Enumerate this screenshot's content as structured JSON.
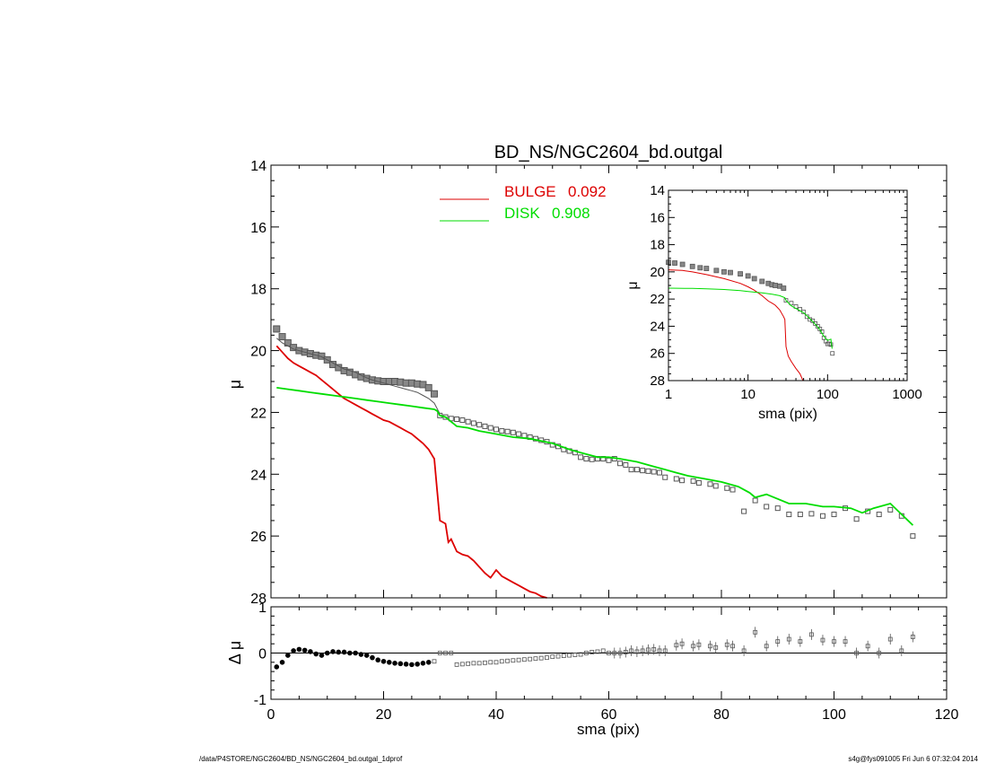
{
  "chart_data": [
    {
      "type": "line",
      "title": "BD_NS/NGC2604_bd.outgal",
      "xlabel": "",
      "ylabel": "μ",
      "xlim": [
        0,
        120
      ],
      "ylim": [
        28,
        14
      ],
      "y_inverted": true,
      "yticks": [
        "14",
        "16",
        "18",
        "20",
        "22",
        "24",
        "26",
        "28"
      ],
      "legend": {
        "placement": "top-center",
        "entries": [
          {
            "label": "BULGE",
            "value": "0.092",
            "color": "#dd0000"
          },
          {
            "label": "DISK",
            "value": "0.908",
            "color": "#00dd00"
          }
        ]
      },
      "series": [
        {
          "style": "squares",
          "color": "#555555",
          "x": [
            1,
            2,
            3,
            4,
            5,
            6,
            7,
            8,
            9,
            10,
            11,
            12,
            13,
            14,
            15,
            16,
            17,
            18,
            19,
            20,
            21,
            22,
            23,
            24,
            25,
            26,
            27,
            28,
            29,
            30,
            31,
            32,
            33,
            34,
            35,
            36,
            37,
            38,
            39,
            40,
            41,
            42,
            43,
            44,
            45,
            46,
            47,
            48,
            49,
            50,
            51,
            52,
            53,
            54,
            55,
            56,
            57,
            58,
            59,
            60,
            61,
            62,
            63,
            64,
            65,
            66,
            67,
            68,
            69,
            70,
            72,
            73,
            75,
            76,
            78,
            79,
            81,
            82,
            84,
            86,
            88,
            90,
            92,
            94,
            96,
            98,
            100,
            102,
            104,
            106,
            108,
            110,
            112,
            114
          ],
          "y": [
            19.3,
            19.55,
            19.75,
            19.9,
            20.0,
            20.05,
            20.1,
            20.15,
            20.18,
            20.3,
            20.45,
            20.55,
            20.65,
            20.7,
            20.78,
            20.85,
            20.9,
            20.95,
            20.98,
            21.0,
            21.0,
            21.0,
            21.02,
            21.05,
            21.05,
            21.08,
            21.1,
            21.2,
            21.4,
            22.1,
            22.15,
            22.2,
            22.22,
            22.25,
            22.3,
            22.35,
            22.4,
            22.45,
            22.5,
            22.55,
            22.6,
            22.62,
            22.65,
            22.7,
            22.75,
            22.8,
            22.85,
            22.9,
            22.95,
            23.05,
            23.1,
            23.2,
            23.25,
            23.3,
            23.45,
            23.5,
            23.52,
            23.5,
            23.5,
            23.55,
            23.5,
            23.65,
            23.7,
            23.85,
            23.85,
            23.88,
            23.9,
            23.92,
            23.95,
            24.1,
            24.15,
            24.2,
            24.22,
            24.28,
            24.32,
            24.38,
            24.45,
            24.5,
            25.2,
            24.85,
            25.05,
            25.1,
            25.3,
            25.3,
            25.28,
            25.35,
            25.3,
            25.1,
            25.45,
            25.2,
            25.3,
            25.15,
            25.35,
            26.0
          ]
        },
        {
          "style": "thin-line",
          "color": "#555555",
          "x": [
            1,
            2,
            3,
            4,
            5,
            6,
            7,
            8,
            9,
            10,
            11,
            12,
            13,
            14,
            15,
            16,
            17,
            18,
            19,
            20,
            21,
            22,
            23,
            24,
            25,
            26,
            27,
            28,
            29,
            30
          ],
          "y": [
            19.6,
            19.75,
            19.85,
            19.95,
            20.0,
            20.05,
            20.1,
            20.15,
            20.2,
            20.3,
            20.4,
            20.5,
            20.6,
            20.65,
            20.7,
            20.8,
            20.88,
            20.95,
            21.0,
            21.05,
            21.1,
            21.15,
            21.2,
            21.25,
            21.3,
            21.35,
            21.45,
            21.55,
            21.7,
            22.05
          ]
        },
        {
          "style": "line",
          "color": "#dd0000",
          "name": "BULGE",
          "x": [
            1,
            2,
            3,
            4,
            5,
            6,
            7,
            8,
            9,
            10,
            11,
            12,
            13,
            14,
            15,
            16,
            17,
            18,
            19,
            20,
            21,
            22,
            23,
            24,
            25,
            26,
            27,
            28,
            29,
            29.5,
            30,
            31,
            31.5,
            32,
            33,
            34,
            35,
            36,
            37,
            38,
            39,
            40,
            41,
            42,
            43,
            44,
            45,
            46,
            47,
            48,
            49
          ],
          "y": [
            19.85,
            20.05,
            20.25,
            20.4,
            20.5,
            20.6,
            20.7,
            20.8,
            20.95,
            21.1,
            21.25,
            21.4,
            21.55,
            21.65,
            21.75,
            21.85,
            21.95,
            22.05,
            22.15,
            22.25,
            22.3,
            22.4,
            22.5,
            22.6,
            22.7,
            22.85,
            23.0,
            23.2,
            23.5,
            24.5,
            25.5,
            25.6,
            26.2,
            26.1,
            26.5,
            26.6,
            26.65,
            26.8,
            27.0,
            27.2,
            27.35,
            27.1,
            27.3,
            27.4,
            27.5,
            27.6,
            27.7,
            27.8,
            27.85,
            27.95,
            28.0
          ]
        },
        {
          "style": "line",
          "color": "#00dd00",
          "name": "DISK",
          "x": [
            1,
            3,
            5,
            7,
            9,
            11,
            13,
            15,
            17,
            19,
            21,
            23,
            25,
            27,
            29,
            29.5,
            30,
            31,
            32,
            33,
            35,
            37,
            40,
            43,
            46,
            50,
            53,
            55,
            58,
            60,
            62,
            65,
            68,
            70,
            72,
            74,
            77,
            80,
            83,
            85,
            86,
            88,
            90,
            92,
            95,
            98,
            100,
            103,
            105,
            107,
            110,
            112,
            114
          ],
          "y": [
            21.2,
            21.25,
            21.3,
            21.35,
            21.4,
            21.45,
            21.5,
            21.55,
            21.6,
            21.65,
            21.7,
            21.75,
            21.8,
            21.85,
            21.9,
            21.95,
            22.1,
            22.15,
            22.3,
            22.45,
            22.5,
            22.6,
            22.7,
            22.8,
            22.85,
            23.0,
            23.2,
            23.3,
            23.45,
            23.45,
            23.5,
            23.6,
            23.75,
            23.85,
            23.95,
            24.05,
            24.15,
            24.25,
            24.4,
            24.6,
            24.75,
            24.65,
            24.8,
            24.95,
            24.95,
            25.05,
            25.05,
            25.1,
            25.25,
            25.1,
            24.95,
            25.3,
            25.65
          ]
        }
      ]
    },
    {
      "type": "line",
      "xlabel": "sma (pix)",
      "ylabel": "μ",
      "xscale": "log",
      "xlim": [
        1,
        1000
      ],
      "ylim": [
        28,
        14
      ],
      "y_inverted": true,
      "xticks": [
        "1",
        "10",
        "100",
        "1000"
      ],
      "yticks": [
        "14",
        "16",
        "18",
        "20",
        "22",
        "24",
        "26",
        "28"
      ],
      "placement": "inset top-right",
      "series": [
        {
          "style": "squares",
          "color": "#555555",
          "x": [
            1,
            1.2,
            1.5,
            2,
            2.5,
            3,
            4,
            5,
            6,
            8,
            10,
            12,
            15,
            18,
            20,
            22,
            25,
            28,
            30,
            35,
            40,
            45,
            50,
            55,
            60,
            65,
            70,
            75,
            80,
            85,
            90,
            95,
            100,
            105,
            110,
            115
          ],
          "y": [
            19.3,
            19.35,
            19.45,
            19.6,
            19.7,
            19.75,
            19.9,
            20.0,
            20.05,
            20.15,
            20.3,
            20.5,
            20.7,
            20.85,
            20.95,
            21.0,
            21.05,
            21.2,
            22.1,
            22.3,
            22.55,
            22.75,
            22.95,
            23.3,
            23.5,
            23.6,
            23.8,
            24.0,
            24.2,
            24.4,
            24.85,
            25.1,
            25.3,
            25.3,
            25.35,
            26.0
          ]
        },
        {
          "style": "line",
          "color": "#dd0000",
          "x": [
            1,
            1.5,
            2,
            3,
            5,
            8,
            10,
            12,
            15,
            18,
            20,
            22,
            25,
            28,
            29,
            30,
            32,
            35,
            40,
            45,
            49
          ],
          "y": [
            19.85,
            19.9,
            20.0,
            20.2,
            20.5,
            20.85,
            21.1,
            21.35,
            21.75,
            22.15,
            22.3,
            22.45,
            22.8,
            23.3,
            23.5,
            25.5,
            26.2,
            26.6,
            27.1,
            27.5,
            28.0
          ]
        },
        {
          "style": "line",
          "color": "#00dd00",
          "x": [
            1,
            2,
            3,
            5,
            8,
            10,
            15,
            20,
            25,
            29,
            30,
            35,
            40,
            50,
            60,
            70,
            80,
            90,
            100,
            110,
            114
          ],
          "y": [
            21.2,
            21.22,
            21.25,
            21.3,
            21.38,
            21.45,
            21.55,
            21.65,
            21.75,
            21.9,
            22.1,
            22.5,
            22.7,
            23.0,
            23.45,
            23.85,
            24.25,
            24.75,
            25.05,
            24.95,
            25.65
          ]
        }
      ]
    },
    {
      "type": "scatter",
      "xlabel": "sma (pix)",
      "ylabel": "Δ μ",
      "xlim": [
        0,
        120
      ],
      "ylim": [
        -1,
        1
      ],
      "xticks": [
        "0",
        "20",
        "40",
        "60",
        "80",
        "100",
        "120"
      ],
      "yticks": [
        "1",
        "0",
        "-1"
      ],
      "series": [
        {
          "style": "residual-squares",
          "color": "#555555",
          "x": [
            1,
            2,
            3,
            4,
            5,
            6,
            7,
            8,
            9,
            10,
            11,
            12,
            13,
            14,
            15,
            16,
            17,
            18,
            19,
            20,
            21,
            22,
            23,
            24,
            25,
            26,
            27,
            28,
            29,
            30,
            31,
            32,
            33,
            34,
            35,
            36,
            37,
            38,
            39,
            40,
            41,
            42,
            43,
            44,
            45,
            46,
            47,
            48,
            49,
            50,
            51,
            52,
            53,
            54,
            55,
            56,
            57,
            58,
            59,
            60,
            61,
            62,
            63,
            64,
            65,
            66,
            67,
            68,
            69,
            70,
            72,
            73,
            75,
            76,
            78,
            79,
            81,
            82,
            84,
            86,
            88,
            90,
            92,
            94,
            96,
            98,
            100,
            102,
            104,
            106,
            108,
            110,
            112,
            114
          ],
          "y": [
            -0.3,
            -0.2,
            -0.05,
            0.05,
            0.08,
            0.06,
            0.03,
            -0.02,
            -0.05,
            0.0,
            0.03,
            0.02,
            0.02,
            0.0,
            0.0,
            -0.03,
            -0.05,
            -0.1,
            -0.15,
            -0.18,
            -0.2,
            -0.22,
            -0.23,
            -0.24,
            -0.25,
            -0.24,
            -0.22,
            -0.2,
            -0.18,
            0.0,
            0.0,
            0.0,
            -0.25,
            -0.24,
            -0.23,
            -0.22,
            -0.22,
            -0.21,
            -0.2,
            -0.2,
            -0.18,
            -0.17,
            -0.16,
            -0.15,
            -0.14,
            -0.13,
            -0.12,
            -0.11,
            -0.1,
            -0.08,
            -0.07,
            -0.06,
            -0.05,
            -0.04,
            -0.03,
            0.0,
            0.02,
            0.03,
            0.05,
            0.0,
            0.0,
            0.0,
            0.02,
            0.05,
            0.03,
            0.05,
            0.07,
            0.08,
            0.05,
            0.05,
            0.17,
            0.2,
            0.15,
            0.18,
            0.15,
            0.12,
            0.18,
            0.15,
            0.05,
            0.45,
            0.15,
            0.25,
            0.3,
            0.25,
            0.4,
            0.28,
            0.25,
            0.25,
            0.0,
            0.15,
            0.0,
            0.3,
            0.05,
            0.35
          ]
        }
      ]
    }
  ],
  "footer": {
    "path": "/data/P4STORE/NGC2604/BD_NS/NGC2604_bd.outgal_1dprof",
    "stamp": "s4g@fys091005  Fri Jun  6 07:32:04 2014"
  }
}
